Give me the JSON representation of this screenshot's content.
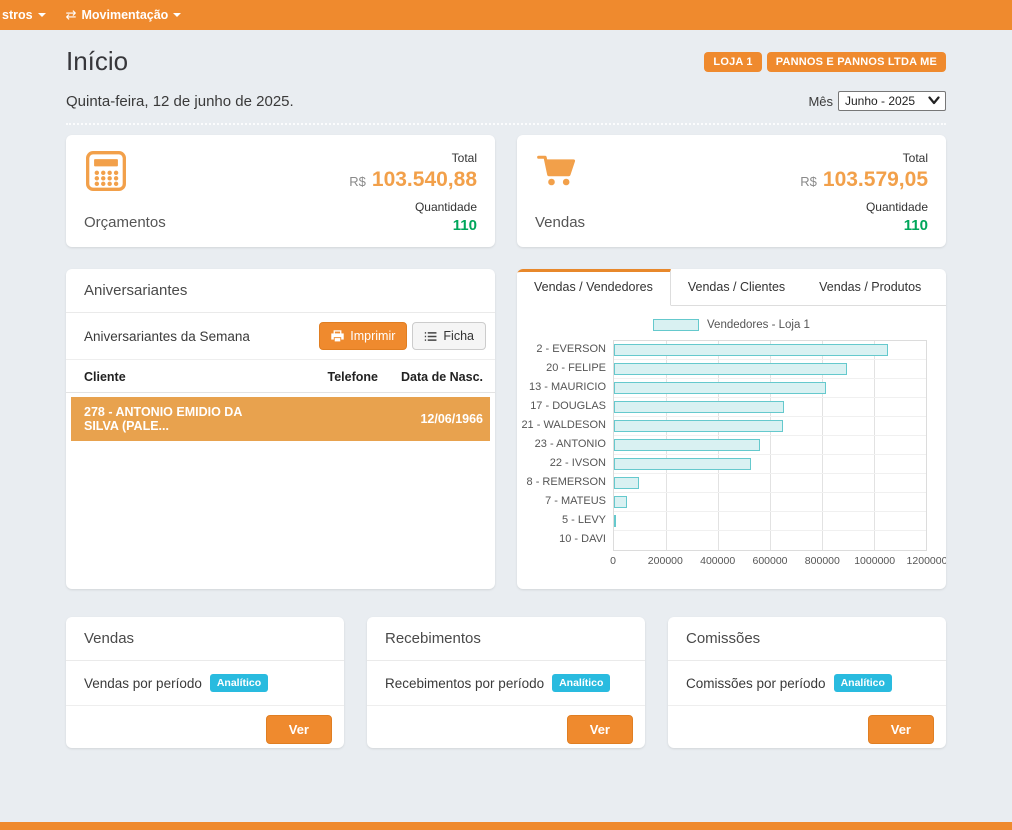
{
  "colors": {
    "accent_orange": "#ef8a2e",
    "light_orange": "#f2a04a",
    "green": "#00a65b",
    "cyan_badge": "#29bbdf",
    "bar_fill": "#d9f1f2",
    "bar_border": "#65c9cd",
    "row_highlight": "#e8a24e"
  },
  "nav": {
    "items": [
      {
        "label": "stros",
        "icon": ""
      },
      {
        "label": "Movimentação",
        "icon": "swap-arrows-icon"
      }
    ]
  },
  "header": {
    "title": "Início",
    "badges": [
      "LOJA 1",
      "PANNOS E PANNOS LTDA ME"
    ],
    "date": "Quinta-feira, 12 de junho de 2025.",
    "month_label": "Mês",
    "month_value": "Junho - 2025"
  },
  "stats": [
    {
      "icon": "calculator-icon",
      "label": "Orçamentos",
      "total_label": "Total",
      "currency": "R$",
      "total": "103.540,88",
      "qty_label": "Quantidade",
      "qty": "110"
    },
    {
      "icon": "shopping-cart-icon",
      "label": "Vendas",
      "total_label": "Total",
      "currency": "R$",
      "total": "103.579,05",
      "qty_label": "Quantidade",
      "qty": "110"
    }
  ],
  "birthdays": {
    "title": "Aniversariantes",
    "subtitle": "Aniversariantes da Semana",
    "print_button": "Imprimir",
    "ficha_button": "Ficha",
    "columns": [
      "Cliente",
      "Telefone",
      "Data de Nasc."
    ],
    "rows": [
      {
        "cliente": "278 - ANTONIO EMIDIO DA SILVA (PALE...",
        "telefone": "",
        "nascimento": "12/06/1966"
      }
    ]
  },
  "sales_panel": {
    "tabs": [
      "Vendas / Vendedores",
      "Vendas / Clientes",
      "Vendas / Produtos"
    ],
    "active_tab": 0
  },
  "chart_data": {
    "type": "bar",
    "orientation": "horizontal",
    "legend": "Vendedores - Loja 1",
    "legend_position": "top",
    "grid": true,
    "categories": [
      "2 - EVERSON",
      "20 - FELIPE",
      "13 - MAURICIO",
      "17 - DOUGLAS",
      "21 - WALDESON",
      "23 - ANTONIO",
      "22 - IVSON",
      "8 - REMERSON",
      "7 - MATEUS",
      "5 - LEVY",
      "10 - DAVI"
    ],
    "values": [
      1058000,
      900000,
      820000,
      656000,
      654000,
      566000,
      529000,
      101000,
      55000,
      5000,
      0
    ],
    "xlim": [
      0,
      1200000
    ],
    "xticks": [
      0,
      200000,
      400000,
      600000,
      800000,
      1000000,
      1200000
    ]
  },
  "bottom_cards": [
    {
      "title": "Vendas",
      "line": "Vendas por período",
      "badge": "Analítico",
      "button": "Ver"
    },
    {
      "title": "Recebimentos",
      "line": "Recebimentos por período",
      "badge": "Analítico",
      "button": "Ver"
    },
    {
      "title": "Comissões",
      "line": "Comissões por período",
      "badge": "Analítico",
      "button": "Ver"
    }
  ]
}
